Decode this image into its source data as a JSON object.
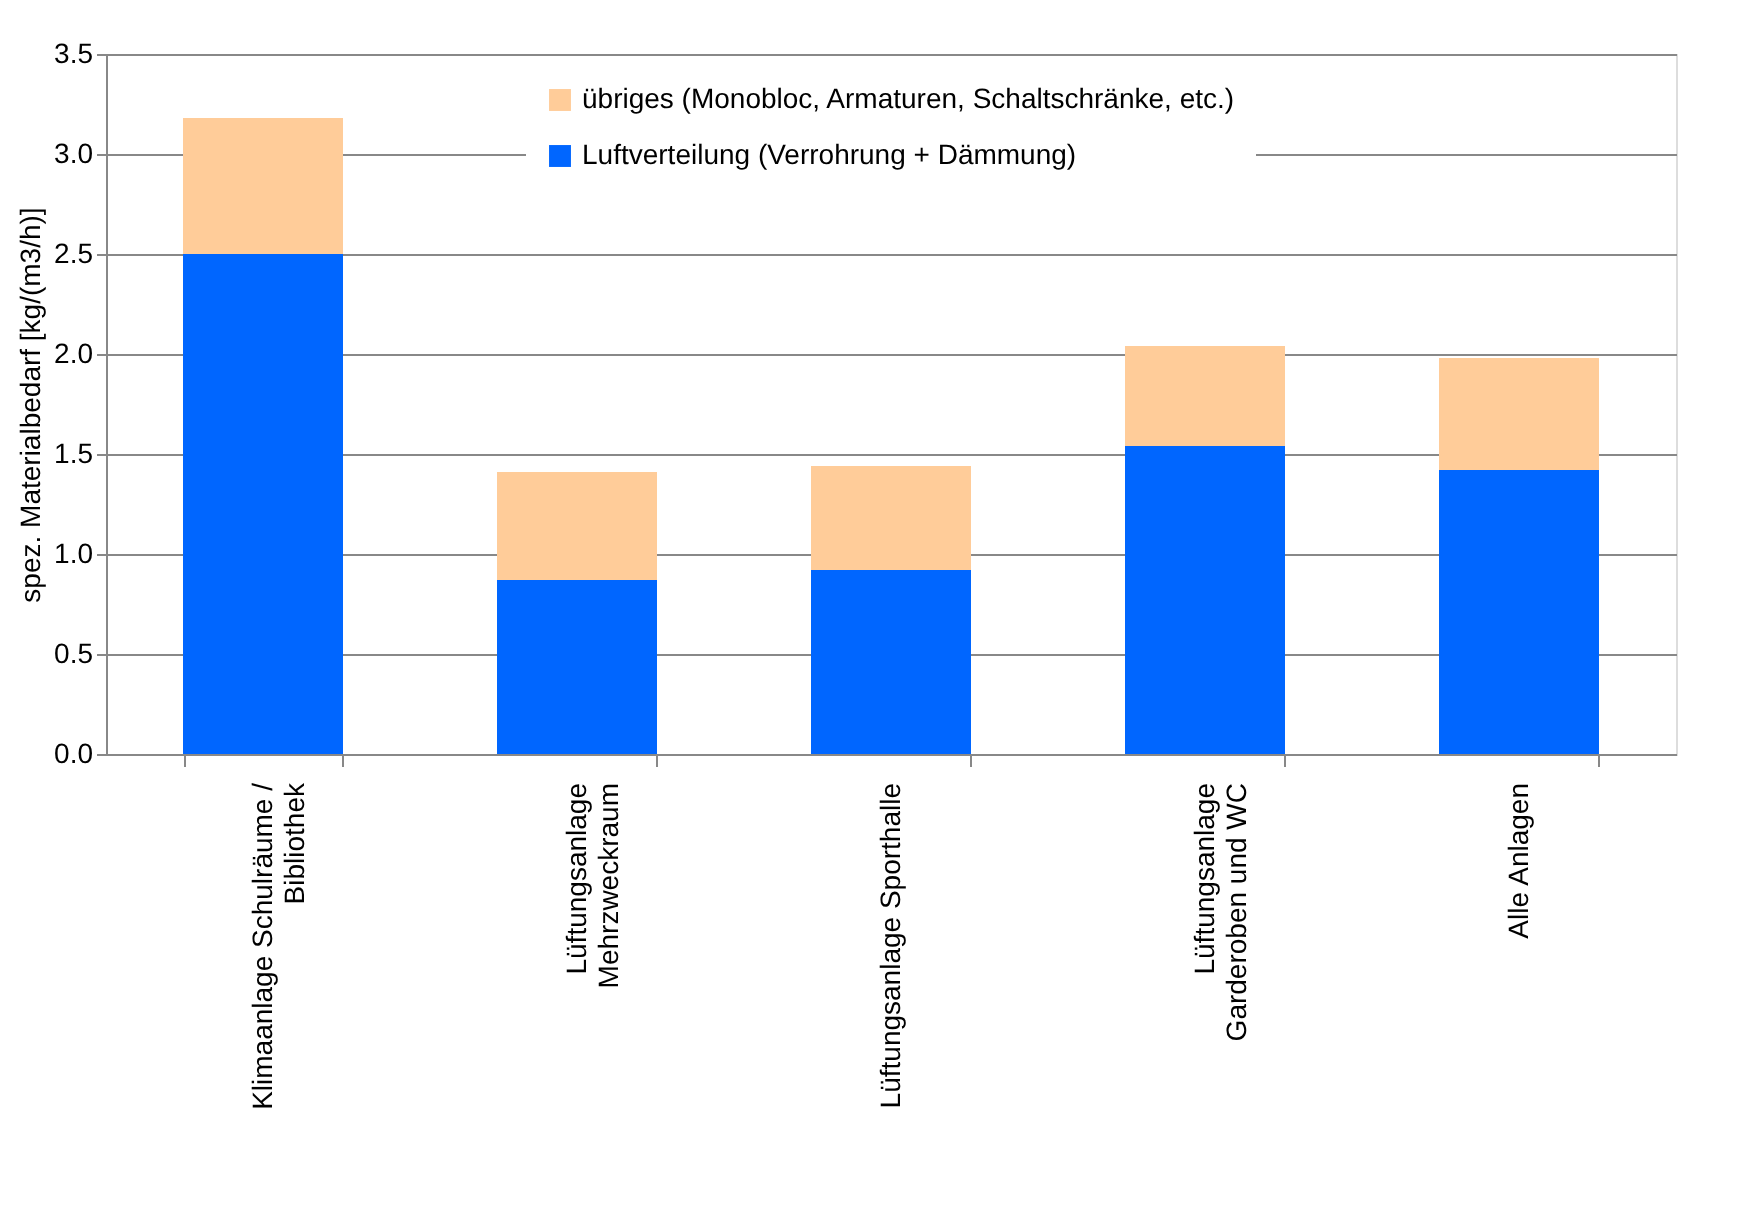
{
  "chart_data": {
    "type": "bar",
    "stacked": true,
    "ylabel": "spez. Materialbedarf [kg/(m3/h)]",
    "categories": [
      "Klimaanlage Schulräume /\nBibliothek",
      "Lüftungsanlage\nMehrzweckraum",
      "Lüftungsanlage Sporthalle",
      "Lüftungsanlage\nGarderoben und WC",
      "Alle Anlagen"
    ],
    "series": [
      {
        "name": "Luftverteilung (Verrohrung + Dämmung)",
        "color": "#0066ff",
        "values": [
          2.5,
          0.87,
          0.92,
          1.54,
          1.42
        ]
      },
      {
        "name": "übriges (Monobloc, Armaturen, Schaltschränke, etc.)",
        "color": "#ffcc99",
        "values": [
          0.68,
          0.54,
          0.52,
          0.5,
          0.56
        ]
      }
    ],
    "ylim": [
      0,
      3.5
    ],
    "yticks": [
      {
        "value": 0,
        "label": "0.0"
      },
      0.5,
      {
        "value": 1,
        "label": "1.0"
      },
      1.5,
      {
        "value": 2,
        "label": "2.0"
      },
      2.5,
      {
        "value": 3,
        "label": "3.0"
      },
      3.5
    ],
    "grid": "y",
    "legend": "top right"
  }
}
